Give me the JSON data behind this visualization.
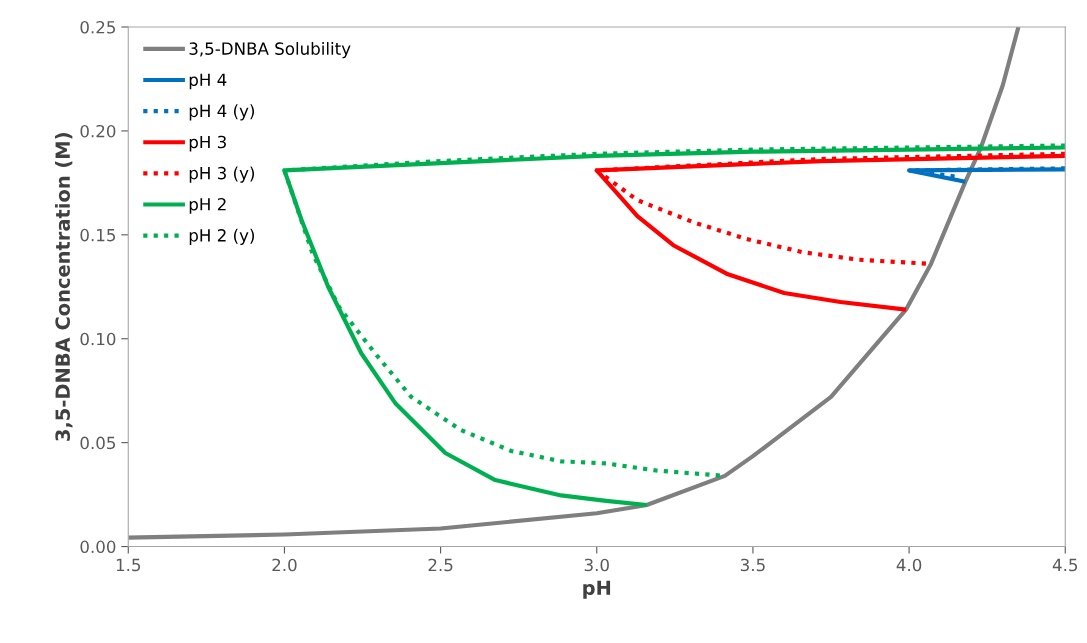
{
  "chart_data": {
    "type": "line",
    "xlabel": "pH",
    "ylabel": "3,5-DNBA Concentration (M)",
    "xlim": [
      1.5,
      4.5
    ],
    "ylim": [
      0,
      0.25
    ],
    "xticks": [
      1.5,
      {
        "value": 2,
        "label": "2.0"
      },
      2.5,
      {
        "value": 3,
        "label": "3.0"
      },
      3.5,
      {
        "value": 4,
        "label": "4.0"
      },
      4.5
    ],
    "yticks": [
      {
        "value": 0,
        "label": "0.00"
      },
      {
        "value": 0.05,
        "label": "0.05"
      },
      {
        "value": 0.1,
        "label": "0.10"
      },
      {
        "value": 0.15,
        "label": "0.15"
      },
      {
        "value": 0.2,
        "label": "0.20"
      },
      {
        "value": 0.25,
        "label": "0.25"
      }
    ],
    "grid": false,
    "legend": "top left",
    "marker": "none",
    "series": [
      {
        "name": "3,5-DNBA Solubility",
        "color": "#7f7f7f",
        "line_style": "solid",
        "x": [
          1.5,
          2.0,
          2.5,
          3.0,
          3.16,
          3.41,
          3.5,
          3.75,
          3.99,
          4.07,
          4.18,
          4.23,
          4.3,
          4.35
        ],
        "values": [
          0.0043,
          0.0058,
          0.0087,
          0.016,
          0.02,
          0.034,
          0.0435,
          0.072,
          0.114,
          0.136,
          0.1755,
          0.192,
          0.222,
          0.25
        ]
      },
      {
        "name": "pH 4",
        "color": "#0070c0",
        "line_style": "solid",
        "x": [
          4.5,
          4.0,
          4.18
        ],
        "values": [
          0.1815,
          0.181,
          0.1755
        ]
      },
      {
        "name": "pH 4 (y)",
        "color": "#0070c0",
        "line_style": "dotted",
        "x": [
          4.5,
          4.0,
          4.15
        ],
        "values": [
          0.182,
          0.181,
          0.178
        ]
      },
      {
        "name": "pH 3",
        "color": "#ff0000",
        "line_style": "solid",
        "x": [
          4.5,
          3.72,
          3.0,
          3.13,
          3.245,
          3.42,
          3.6,
          3.78,
          3.99
        ],
        "values": [
          0.188,
          0.1855,
          0.181,
          0.159,
          0.145,
          0.131,
          0.122,
          0.1177,
          0.114
        ]
      },
      {
        "name": "pH 3 (y)",
        "color": "#ff0000",
        "line_style": "dotted",
        "x": [
          4.5,
          3.72,
          3.0,
          3.13,
          3.31,
          3.48,
          3.66,
          3.84,
          4.07
        ],
        "values": [
          0.189,
          0.1865,
          0.181,
          0.1667,
          0.156,
          0.148,
          0.1416,
          0.138,
          0.136
        ]
      },
      {
        "name": "pH 2",
        "color": "#00b050",
        "line_style": "solid",
        "x": [
          4.5,
          4.0,
          3.5,
          3.0,
          2.5,
          2.0,
          2.055,
          2.14,
          2.246,
          2.355,
          2.515,
          2.675,
          2.886,
          3.03,
          3.16
        ],
        "values": [
          0.192,
          0.191,
          0.19,
          0.188,
          0.1845,
          0.181,
          0.157,
          0.125,
          0.093,
          0.069,
          0.045,
          0.032,
          0.0246,
          0.022,
          0.02
        ]
      },
      {
        "name": "pH 2 (y)",
        "color": "#00b050",
        "line_style": "dotted",
        "x": [
          4.5,
          4.0,
          3.5,
          3.0,
          2.5,
          2.0,
          2.09,
          2.176,
          2.29,
          2.406,
          2.566,
          2.726,
          2.886,
          3.03,
          3.19,
          3.41
        ],
        "values": [
          0.193,
          0.192,
          0.191,
          0.189,
          0.1855,
          0.181,
          0.141,
          0.115,
          0.093,
          0.072,
          0.056,
          0.046,
          0.041,
          0.04,
          0.0366,
          0.034
        ]
      }
    ]
  }
}
